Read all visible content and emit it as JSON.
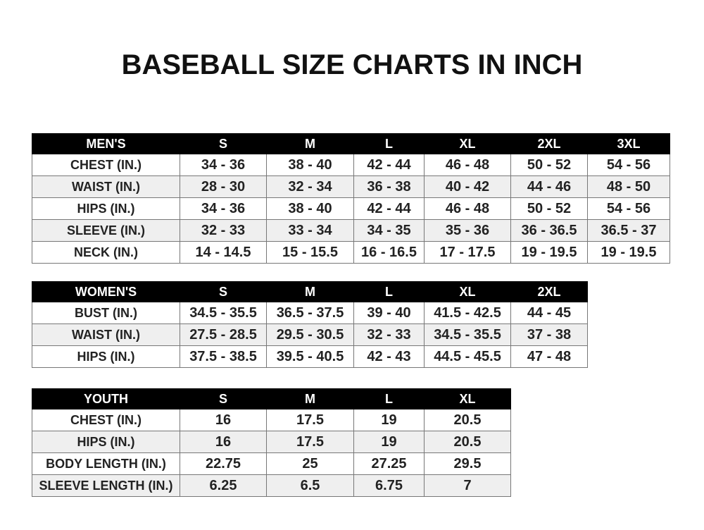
{
  "title": "BASEBALL SIZE CHARTS IN INCH",
  "tables": [
    {
      "id": "mens",
      "header": [
        "MEN'S",
        "S",
        "M",
        "L",
        "XL",
        "2XL",
        "3XL"
      ],
      "rows": [
        [
          "CHEST (IN.)",
          "34 - 36",
          "38 - 40",
          "42 - 44",
          "46 - 48",
          "50 - 52",
          "54 - 56"
        ],
        [
          "WAIST (IN.)",
          "28 - 30",
          "32 - 34",
          "36 - 38",
          "40 - 42",
          "44 - 46",
          "48 - 50"
        ],
        [
          "HIPS (IN.)",
          "34 - 36",
          "38 - 40",
          "42 - 44",
          "46 - 48",
          "50 - 52",
          "54 - 56"
        ],
        [
          "SLEEVE (IN.)",
          "32 - 33",
          "33 - 34",
          "34 - 35",
          "35 - 36",
          "36 - 36.5",
          "36.5 - 37"
        ],
        [
          "NECK (IN.)",
          "14 - 14.5",
          "15 - 15.5",
          "16 - 16.5",
          "17 - 17.5",
          "19 - 19.5",
          "19 - 19.5"
        ]
      ]
    },
    {
      "id": "womens",
      "header": [
        "WOMEN'S",
        "S",
        "M",
        "L",
        "XL",
        "2XL"
      ],
      "rows": [
        [
          "BUST (IN.)",
          "34.5 - 35.5",
          "36.5 - 37.5",
          "39 - 40",
          "41.5 - 42.5",
          "44 - 45"
        ],
        [
          "WAIST (IN.)",
          "27.5 - 28.5",
          "29.5 - 30.5",
          "32 - 33",
          "34.5 - 35.5",
          "37 - 38"
        ],
        [
          "HIPS (IN.)",
          "37.5 - 38.5",
          "39.5 - 40.5",
          "42 - 43",
          "44.5 - 45.5",
          "47 - 48"
        ]
      ]
    },
    {
      "id": "youth",
      "header": [
        "YOUTH",
        "S",
        "M",
        "L",
        "XL"
      ],
      "rows": [
        [
          "CHEST (IN.)",
          "16",
          "17.5",
          "19",
          "20.5"
        ],
        [
          "HIPS (IN.)",
          "16",
          "17.5",
          "19",
          "20.5"
        ],
        [
          "BODY LENGTH (IN.)",
          "22.75",
          "25",
          "27.25",
          "29.5"
        ],
        [
          "SLEEVE LENGTH (IN.)",
          "6.25",
          "6.5",
          "6.75",
          "7"
        ]
      ]
    }
  ]
}
